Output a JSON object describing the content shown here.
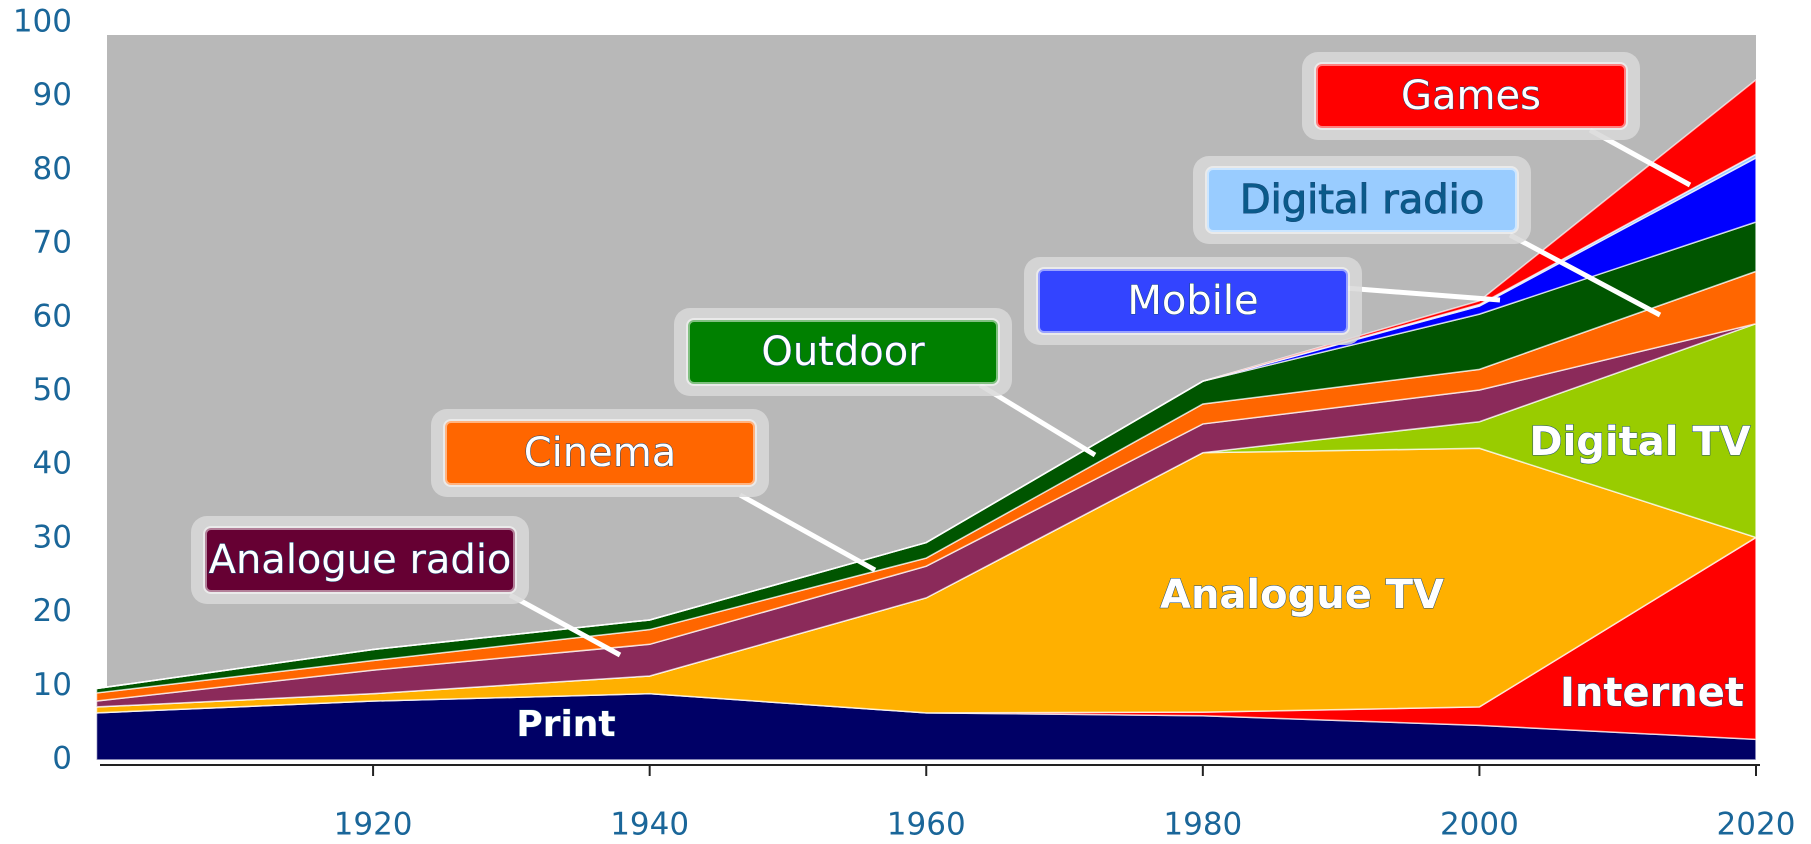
{
  "chart_data": {
    "type": "stacked_area",
    "x": [
      1900,
      1920,
      1940,
      1960,
      1980,
      2000,
      2020
    ],
    "series": [
      {
        "name": "Print",
        "color": "#000066",
        "values": [
          6.4,
          8,
          9,
          6.4,
          6,
          4.7,
          2.8
        ]
      },
      {
        "name": "Internet",
        "color": "#ff0000",
        "values": [
          0,
          0,
          0,
          0,
          0.5,
          2.5,
          27.4
        ]
      },
      {
        "name": "Analogue TV",
        "color": "#ffb000",
        "values": [
          0.8,
          1,
          2.4,
          15.6,
          35.2,
          35.1,
          0
        ]
      },
      {
        "name": "Digital TV",
        "color": "#99cc00",
        "values": [
          0,
          0,
          0,
          0,
          0,
          3.6,
          29
        ]
      },
      {
        "name": "Analogue radio",
        "color": "#8b2a5a",
        "values": [
          0.8,
          3.2,
          4.3,
          4.3,
          3.9,
          4.3,
          0
        ]
      },
      {
        "name": "Cinema",
        "color": "#ff6600",
        "values": [
          1.1,
          1.3,
          2,
          1.1,
          2.7,
          2.8,
          7.1
        ]
      },
      {
        "name": "Outdoor",
        "color": "#005500",
        "values": [
          0.6,
          1.5,
          1.3,
          2.1,
          3.1,
          7.5,
          6.7
        ]
      },
      {
        "name": "Mobile",
        "color": "#0000ff",
        "values": [
          0,
          0,
          0,
          0,
          0,
          1.1,
          8.7
        ]
      },
      {
        "name": "Digital radio",
        "color": "#99ccff",
        "values": [
          0,
          0,
          0,
          0,
          0,
          0.2,
          0.5
        ]
      },
      {
        "name": "Games",
        "color": "#ff0000",
        "values": [
          0,
          0,
          0,
          0,
          0,
          0.5,
          10.1
        ]
      }
    ],
    "xlim": [
      1900,
      2020
    ],
    "xticks": [
      1920,
      1940,
      1960,
      1980,
      2000,
      2020
    ],
    "ylim": [
      0,
      100
    ],
    "yticks": [
      0,
      10,
      20,
      30,
      40,
      50,
      60,
      70,
      80,
      90,
      100
    ]
  }
}
